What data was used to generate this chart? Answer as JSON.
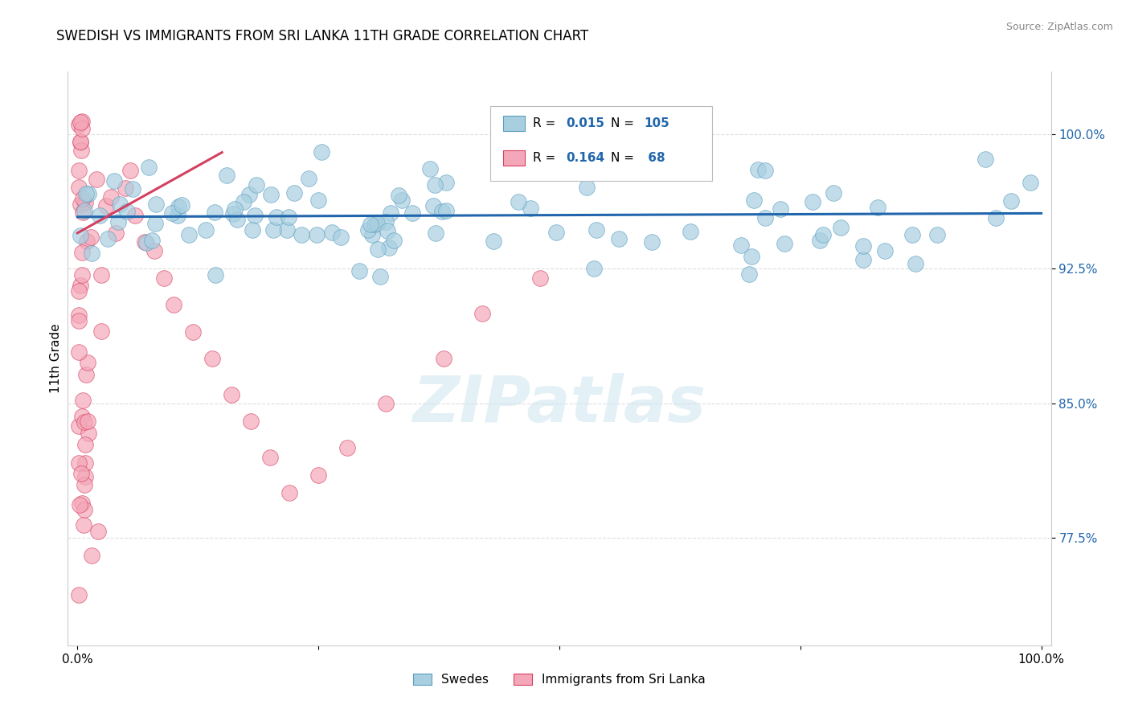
{
  "title": "SWEDISH VS IMMIGRANTS FROM SRI LANKA 11TH GRADE CORRELATION CHART",
  "source": "Source: ZipAtlas.com",
  "ylabel": "11th Grade",
  "y_tick_labels": [
    "77.5%",
    "85.0%",
    "92.5%",
    "100.0%"
  ],
  "y_ticks": [
    0.775,
    0.85,
    0.925,
    1.0
  ],
  "xlim": [
    -0.01,
    1.01
  ],
  "ylim": [
    0.715,
    1.035
  ],
  "swedes_color": "#a8cfe0",
  "swedes_edge": "#5a9dc0",
  "sri_lanka_color": "#f4a7b9",
  "sri_lanka_edge": "#d44060",
  "trend_blue_color": "#2166ac",
  "trend_pink_color": "#d44060",
  "background_color": "#ffffff",
  "watermark_text": "ZIPatlas",
  "swedes_label": "Swedes",
  "sri_lanka_label": "Immigrants from Sri Lanka",
  "grid_color": "#dddddd",
  "axis_color": "#cccccc",
  "tick_label_color": "#2166ac"
}
